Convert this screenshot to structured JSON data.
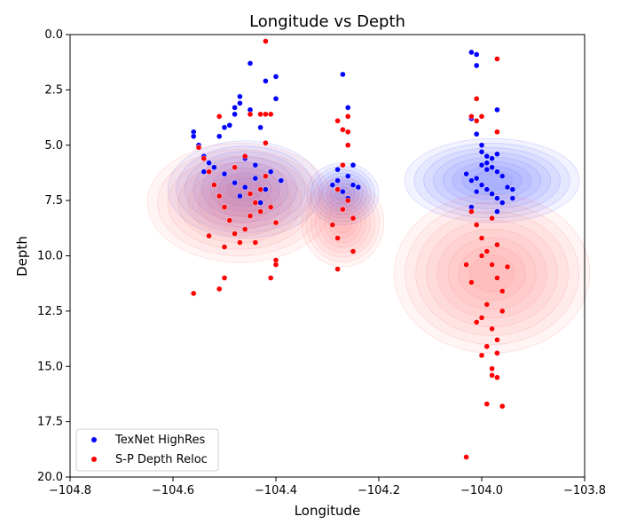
{
  "chart_data": {
    "type": "scatter",
    "title": "Longitude vs Depth",
    "xlabel": "Longitude",
    "ylabel": "Depth",
    "xlim": [
      -104.8,
      -103.8
    ],
    "ylim": [
      20.0,
      0.0
    ],
    "y_inverted": true,
    "xticks": [
      "−104.8",
      "−104.6",
      "−104.4",
      "−104.2",
      "−104.0",
      "−103.8"
    ],
    "xtick_values": [
      -104.8,
      -104.6,
      -104.4,
      -104.2,
      -104.0,
      -103.8
    ],
    "yticks": [
      "0.0",
      "2.5",
      "5.0",
      "7.5",
      "10.0",
      "12.5",
      "15.0",
      "17.5",
      "20.0"
    ],
    "ytick_values": [
      0,
      2.5,
      5,
      7.5,
      10,
      12.5,
      15,
      17.5,
      20
    ],
    "grid": false,
    "legend_position": "lower-left",
    "series": [
      {
        "name": "TexNet HighRes",
        "color": "#0000ff",
        "points": [
          {
            "x": -104.56,
            "y": 4.4
          },
          {
            "x": -104.56,
            "y": 4.6
          },
          {
            "x": -104.55,
            "y": 5.0
          },
          {
            "x": -104.54,
            "y": 5.5
          },
          {
            "x": -104.53,
            "y": 5.8
          },
          {
            "x": -104.52,
            "y": 6.0
          },
          {
            "x": -104.51,
            "y": 4.6
          },
          {
            "x": -104.5,
            "y": 4.2
          },
          {
            "x": -104.49,
            "y": 4.1
          },
          {
            "x": -104.48,
            "y": 3.6
          },
          {
            "x": -104.48,
            "y": 3.3
          },
          {
            "x": -104.47,
            "y": 2.8
          },
          {
            "x": -104.47,
            "y": 3.1
          },
          {
            "x": -104.46,
            "y": 5.6
          },
          {
            "x": -104.45,
            "y": 1.3
          },
          {
            "x": -104.45,
            "y": 3.4
          },
          {
            "x": -104.44,
            "y": 5.9
          },
          {
            "x": -104.43,
            "y": 4.2
          },
          {
            "x": -104.42,
            "y": 2.1
          },
          {
            "x": -104.41,
            "y": 6.2
          },
          {
            "x": -104.4,
            "y": 1.9
          },
          {
            "x": -104.4,
            "y": 2.9
          },
          {
            "x": -104.39,
            "y": 6.6
          },
          {
            "x": -104.5,
            "y": 6.3
          },
          {
            "x": -104.48,
            "y": 6.7
          },
          {
            "x": -104.46,
            "y": 6.9
          },
          {
            "x": -104.44,
            "y": 6.5
          },
          {
            "x": -104.42,
            "y": 7.0
          },
          {
            "x": -104.52,
            "y": 6.8
          },
          {
            "x": -104.54,
            "y": 6.2
          },
          {
            "x": -104.47,
            "y": 7.3
          },
          {
            "x": -104.43,
            "y": 7.6
          },
          {
            "x": -104.28,
            "y": 6.1
          },
          {
            "x": -104.28,
            "y": 6.6
          },
          {
            "x": -104.27,
            "y": 1.8
          },
          {
            "x": -104.26,
            "y": 3.3
          },
          {
            "x": -104.26,
            "y": 6.4
          },
          {
            "x": -104.25,
            "y": 5.9
          },
          {
            "x": -104.25,
            "y": 6.8
          },
          {
            "x": -104.27,
            "y": 7.1
          },
          {
            "x": -104.26,
            "y": 7.4
          },
          {
            "x": -104.24,
            "y": 6.9
          },
          {
            "x": -104.29,
            "y": 6.8
          },
          {
            "x": -104.02,
            "y": 0.8
          },
          {
            "x": -104.01,
            "y": 0.9
          },
          {
            "x": -104.01,
            "y": 1.4
          },
          {
            "x": -103.97,
            "y": 3.4
          },
          {
            "x": -104.02,
            "y": 3.8
          },
          {
            "x": -104.01,
            "y": 4.5
          },
          {
            "x": -104.0,
            "y": 5.0
          },
          {
            "x": -104.0,
            "y": 5.3
          },
          {
            "x": -103.99,
            "y": 5.5
          },
          {
            "x": -103.99,
            "y": 5.8
          },
          {
            "x": -103.98,
            "y": 6.0
          },
          {
            "x": -103.98,
            "y": 5.6
          },
          {
            "x": -103.97,
            "y": 6.2
          },
          {
            "x": -103.96,
            "y": 6.4
          },
          {
            "x": -103.97,
            "y": 5.4
          },
          {
            "x": -104.01,
            "y": 6.5
          },
          {
            "x": -104.02,
            "y": 6.6
          },
          {
            "x": -104.03,
            "y": 6.3
          },
          {
            "x": -104.0,
            "y": 6.8
          },
          {
            "x": -103.99,
            "y": 7.0
          },
          {
            "x": -103.98,
            "y": 7.2
          },
          {
            "x": -103.97,
            "y": 7.4
          },
          {
            "x": -104.01,
            "y": 7.1
          },
          {
            "x": -104.02,
            "y": 7.8
          },
          {
            "x": -103.96,
            "y": 7.6
          },
          {
            "x": -103.95,
            "y": 6.9
          },
          {
            "x": -103.94,
            "y": 7.0
          },
          {
            "x": -103.94,
            "y": 7.4
          },
          {
            "x": -103.97,
            "y": 8.0
          },
          {
            "x": -103.99,
            "y": 6.1
          },
          {
            "x": -104.0,
            "y": 5.9
          }
        ]
      },
      {
        "name": "S-P Depth Reloc",
        "color": "#ff0000",
        "points": [
          {
            "x": -104.56,
            "y": 11.7
          },
          {
            "x": -104.51,
            "y": 11.5
          },
          {
            "x": -104.5,
            "y": 11.0
          },
          {
            "x": -104.51,
            "y": 3.7
          },
          {
            "x": -104.45,
            "y": 3.6
          },
          {
            "x": -104.43,
            "y": 3.6
          },
          {
            "x": -104.42,
            "y": 3.6
          },
          {
            "x": -104.41,
            "y": 3.6
          },
          {
            "x": -104.42,
            "y": 0.3
          },
          {
            "x": -104.4,
            "y": 10.2
          },
          {
            "x": -104.4,
            "y": 10.4
          },
          {
            "x": -104.41,
            "y": 11.0
          },
          {
            "x": -104.42,
            "y": 4.9
          },
          {
            "x": -104.55,
            "y": 5.1
          },
          {
            "x": -104.54,
            "y": 5.6
          },
          {
            "x": -104.53,
            "y": 6.2
          },
          {
            "x": -104.52,
            "y": 6.8
          },
          {
            "x": -104.51,
            "y": 7.3
          },
          {
            "x": -104.5,
            "y": 7.8
          },
          {
            "x": -104.49,
            "y": 8.4
          },
          {
            "x": -104.48,
            "y": 9.0
          },
          {
            "x": -104.47,
            "y": 9.4
          },
          {
            "x": -104.46,
            "y": 8.8
          },
          {
            "x": -104.45,
            "y": 8.2
          },
          {
            "x": -104.44,
            "y": 7.6
          },
          {
            "x": -104.43,
            "y": 7.0
          },
          {
            "x": -104.42,
            "y": 6.4
          },
          {
            "x": -104.41,
            "y": 7.8
          },
          {
            "x": -104.4,
            "y": 8.5
          },
          {
            "x": -104.44,
            "y": 9.4
          },
          {
            "x": -104.53,
            "y": 9.1
          },
          {
            "x": -104.5,
            "y": 9.6
          },
          {
            "x": -104.46,
            "y": 5.5
          },
          {
            "x": -104.48,
            "y": 6.0
          },
          {
            "x": -104.43,
            "y": 8.0
          },
          {
            "x": -104.45,
            "y": 7.2
          },
          {
            "x": -104.28,
            "y": 3.9
          },
          {
            "x": -104.27,
            "y": 4.3
          },
          {
            "x": -104.26,
            "y": 4.4
          },
          {
            "x": -104.26,
            "y": 3.7
          },
          {
            "x": -104.26,
            "y": 5.0
          },
          {
            "x": -104.27,
            "y": 5.9
          },
          {
            "x": -104.28,
            "y": 10.6
          },
          {
            "x": -104.25,
            "y": 9.8
          },
          {
            "x": -104.29,
            "y": 8.6
          },
          {
            "x": -104.28,
            "y": 9.2
          },
          {
            "x": -104.27,
            "y": 7.9
          },
          {
            "x": -104.25,
            "y": 8.3
          },
          {
            "x": -104.28,
            "y": 7.0
          },
          {
            "x": -104.26,
            "y": 7.5
          },
          {
            "x": -103.97,
            "y": 1.1
          },
          {
            "x": -104.01,
            "y": 2.9
          },
          {
            "x": -104.02,
            "y": 3.7
          },
          {
            "x": -104.01,
            "y": 3.9
          },
          {
            "x": -104.0,
            "y": 3.7
          },
          {
            "x": -103.97,
            "y": 4.4
          },
          {
            "x": -104.03,
            "y": 19.1
          },
          {
            "x": -103.99,
            "y": 16.7
          },
          {
            "x": -103.96,
            "y": 16.8
          },
          {
            "x": -103.97,
            "y": 15.5
          },
          {
            "x": -103.98,
            "y": 15.4
          },
          {
            "x": -103.98,
            "y": 15.1
          },
          {
            "x": -104.0,
            "y": 14.5
          },
          {
            "x": -103.97,
            "y": 14.4
          },
          {
            "x": -104.02,
            "y": 8.0
          },
          {
            "x": -104.01,
            "y": 8.6
          },
          {
            "x": -104.0,
            "y": 9.2
          },
          {
            "x": -103.99,
            "y": 9.8
          },
          {
            "x": -103.98,
            "y": 10.4
          },
          {
            "x": -103.97,
            "y": 11.0
          },
          {
            "x": -103.96,
            "y": 11.6
          },
          {
            "x": -103.99,
            "y": 12.2
          },
          {
            "x": -104.0,
            "y": 12.8
          },
          {
            "x": -103.98,
            "y": 13.3
          },
          {
            "x": -103.97,
            "y": 13.8
          },
          {
            "x": -103.95,
            "y": 10.5
          },
          {
            "x": -104.03,
            "y": 10.4
          },
          {
            "x": -104.02,
            "y": 11.2
          },
          {
            "x": -103.96,
            "y": 12.5
          },
          {
            "x": -104.01,
            "y": 13.0
          },
          {
            "x": -103.99,
            "y": 14.1
          },
          {
            "x": -103.98,
            "y": 8.3
          },
          {
            "x": -104.0,
            "y": 10.0
          },
          {
            "x": -103.97,
            "y": 9.5
          }
        ]
      }
    ]
  }
}
